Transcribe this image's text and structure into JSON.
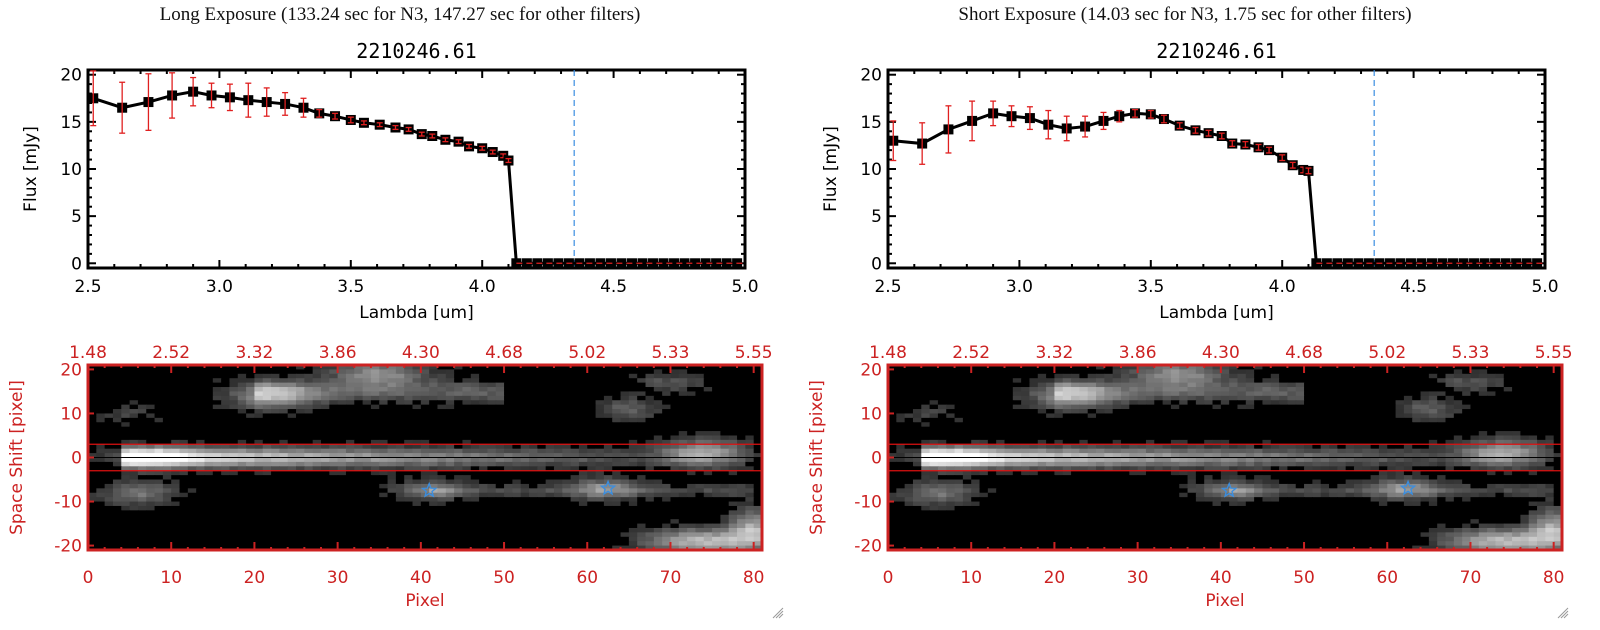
{
  "panels": [
    {
      "title": "Long Exposure (133.24 sec for N3, 147.27 sec for other filters)",
      "chart_data": {
        "type": "line",
        "title": "2210246.61",
        "xlabel": "Lambda [um]",
        "ylabel": "Flux [mJy]",
        "xlim": [
          2.5,
          5.0
        ],
        "ylim": [
          -0.5,
          20.5
        ],
        "xticks": [
          "2.5",
          "3.0",
          "3.5",
          "4.0",
          "4.5",
          "5.0"
        ],
        "xtick_values": [
          2.5,
          3.0,
          3.5,
          4.0,
          4.5,
          5.0
        ],
        "yticks": [
          "0",
          "5",
          "10",
          "15",
          "20"
        ],
        "ytick_values": [
          0,
          5,
          10,
          15,
          20
        ],
        "grid": false,
        "vline": 4.35,
        "vline_color": "#3a8ee0",
        "hline": 0,
        "hline_color": "#e02020",
        "series": [
          {
            "name": "flux",
            "color": "#000000",
            "errcolor": "#e02020",
            "x": [
              2.52,
              2.63,
              2.73,
              2.82,
              2.9,
              2.97,
              3.04,
              3.11,
              3.18,
              3.25,
              3.32,
              3.38,
              3.44,
              3.5,
              3.55,
              3.61,
              3.67,
              3.72,
              3.77,
              3.81,
              3.86,
              3.91,
              3.95,
              4.0,
              4.04,
              4.08,
              4.1,
              4.13,
              4.17,
              4.21,
              4.25,
              4.29,
              4.33,
              4.37,
              4.41,
              4.45,
              4.49,
              4.53,
              4.57,
              4.61,
              4.65,
              4.69,
              4.73,
              4.77,
              4.81,
              4.85,
              4.89,
              4.93,
              4.97
            ],
            "y": [
              17.5,
              16.5,
              17.1,
              17.8,
              18.2,
              17.8,
              17.6,
              17.3,
              17.1,
              16.9,
              16.5,
              15.9,
              15.6,
              15.2,
              14.9,
              14.7,
              14.4,
              14.2,
              13.7,
              13.5,
              13.1,
              12.9,
              12.4,
              12.2,
              11.8,
              11.4,
              10.9,
              0,
              0,
              0,
              0,
              0,
              0,
              0,
              0,
              0,
              0,
              0,
              0,
              0,
              0,
              0,
              0,
              0,
              0,
              0,
              0,
              0,
              0
            ],
            "err": [
              2.9,
              2.7,
              3.0,
              2.4,
              1.5,
              1.3,
              1.4,
              1.8,
              1.5,
              1.2,
              1.0,
              0.4,
              0.3,
              0.3,
              0.2,
              0.2,
              0.2,
              0.2,
              0.2,
              0.2,
              0.2,
              0.2,
              0.2,
              0.2,
              0.2,
              0.2,
              0.2,
              0,
              0,
              0,
              0,
              0,
              0,
              0,
              0,
              0,
              0,
              0,
              0,
              0,
              0,
              0,
              0,
              0,
              0,
              0,
              0,
              0,
              0
            ]
          }
        ]
      },
      "image_data": {
        "type": "heatmap",
        "xlabel": "Pixel",
        "ylabel": "Space Shift [pixel]",
        "xlim": [
          0,
          81
        ],
        "ylim": [
          -21,
          21
        ],
        "xticks": [
          "0",
          "10",
          "20",
          "30",
          "40",
          "50",
          "60",
          "70",
          "80"
        ],
        "xtick_values": [
          0,
          10,
          20,
          30,
          40,
          50,
          60,
          70,
          80
        ],
        "yticks": [
          "20",
          "10",
          "0",
          "-10",
          "-20"
        ],
        "ytick_values": [
          20,
          10,
          0,
          -10,
          -20
        ],
        "top_ticks": [
          "1.48",
          "2.52",
          "3.32",
          "3.86",
          "4.30",
          "4.68",
          "5.02",
          "5.33",
          "5.55"
        ],
        "aperture_lines": [
          3,
          -3
        ],
        "center_line": 0,
        "stars": [
          {
            "x": 41,
            "y": -7.5
          },
          {
            "x": 62.5,
            "y": -7
          }
        ],
        "axis_color": "#cc2222",
        "star_color": "#3a8ee0"
      }
    },
    {
      "title": "Short Exposure (14.03 sec for N3, 1.75 sec for other filters)",
      "chart_data": {
        "type": "line",
        "title": "2210246.61",
        "xlabel": "Lambda [um]",
        "ylabel": "Flux [mJy]",
        "xlim": [
          2.5,
          5.0
        ],
        "ylim": [
          -0.5,
          20.5
        ],
        "xticks": [
          "2.5",
          "3.0",
          "3.5",
          "4.0",
          "4.5",
          "5.0"
        ],
        "xtick_values": [
          2.5,
          3.0,
          3.5,
          4.0,
          4.5,
          5.0
        ],
        "yticks": [
          "0",
          "5",
          "10",
          "15",
          "20"
        ],
        "ytick_values": [
          0,
          5,
          10,
          15,
          20
        ],
        "grid": false,
        "vline": 4.35,
        "vline_color": "#3a8ee0",
        "hline": 0,
        "hline_color": "#e02020",
        "series": [
          {
            "name": "flux",
            "color": "#000000",
            "errcolor": "#e02020",
            "x": [
              2.52,
              2.63,
              2.73,
              2.82,
              2.9,
              2.97,
              3.04,
              3.11,
              3.18,
              3.25,
              3.32,
              3.38,
              3.44,
              3.5,
              3.55,
              3.61,
              3.67,
              3.72,
              3.77,
              3.81,
              3.86,
              3.91,
              3.95,
              4.0,
              4.04,
              4.08,
              4.1,
              4.13,
              4.17,
              4.21,
              4.25,
              4.29,
              4.33,
              4.37,
              4.41,
              4.45,
              4.49,
              4.53,
              4.57,
              4.61,
              4.65,
              4.69,
              4.73,
              4.77,
              4.81,
              4.85,
              4.89,
              4.93,
              4.97
            ],
            "y": [
              13.0,
              12.7,
              14.2,
              15.1,
              15.9,
              15.6,
              15.4,
              14.7,
              14.3,
              14.5,
              15.1,
              15.6,
              15.9,
              15.8,
              15.3,
              14.6,
              14.1,
              13.8,
              13.5,
              12.7,
              12.6,
              12.3,
              12.0,
              11.2,
              10.4,
              9.9,
              9.8,
              0,
              0,
              0,
              0,
              0,
              0,
              0,
              0,
              0,
              0,
              0,
              0,
              0,
              0,
              0,
              0,
              0,
              0,
              0,
              0,
              0,
              0
            ],
            "err": [
              2.1,
              2.2,
              2.5,
              2.1,
              1.3,
              1.1,
              1.2,
              1.5,
              1.3,
              1.1,
              0.9,
              0.6,
              0.4,
              0.4,
              0.4,
              0.3,
              0.3,
              0.3,
              0.3,
              0.3,
              0.3,
              0.3,
              0.3,
              0.3,
              0.3,
              0.3,
              0.3,
              0,
              0,
              0,
              0,
              0,
              0,
              0,
              0,
              0,
              0,
              0,
              0,
              0,
              0,
              0,
              0,
              0,
              0,
              0,
              0,
              0,
              0
            ]
          }
        ]
      },
      "image_data": {
        "type": "heatmap",
        "xlabel": "Pixel",
        "ylabel": "Space Shift [pixel]",
        "xlim": [
          0,
          81
        ],
        "ylim": [
          -21,
          21
        ],
        "xticks": [
          "0",
          "10",
          "20",
          "30",
          "40",
          "50",
          "60",
          "70",
          "80"
        ],
        "xtick_values": [
          0,
          10,
          20,
          30,
          40,
          50,
          60,
          70,
          80
        ],
        "yticks": [
          "20",
          "10",
          "0",
          "-10",
          "-20"
        ],
        "ytick_values": [
          20,
          10,
          0,
          -10,
          -20
        ],
        "top_ticks": [
          "1.48",
          "2.52",
          "3.32",
          "3.86",
          "4.30",
          "4.68",
          "5.02",
          "5.33",
          "5.55"
        ],
        "aperture_lines": [
          3,
          -3
        ],
        "center_line": 0,
        "stars": [
          {
            "x": 41,
            "y": -7.5
          },
          {
            "x": 62.5,
            "y": -7
          }
        ],
        "axis_color": "#cc2222",
        "star_color": "#3a8ee0"
      }
    }
  ]
}
